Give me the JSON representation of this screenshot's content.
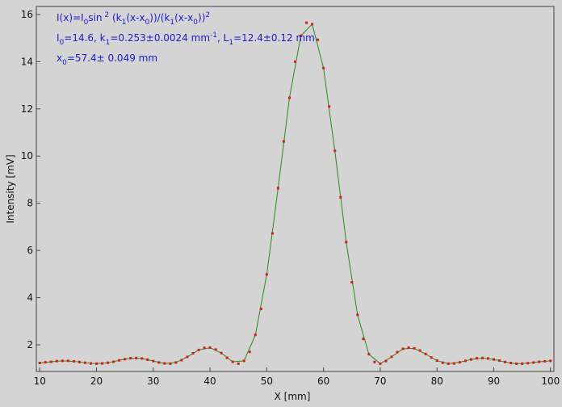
{
  "chart_data": {
    "type": "scatter",
    "xlabel": "X [mm]",
    "ylabel": "Intensity [mV]",
    "xlim": [
      9.4,
      100.6
    ],
    "ylim": [
      0.87,
      16.34
    ],
    "xticks": [
      10,
      20,
      30,
      40,
      50,
      60,
      70,
      80,
      90,
      100
    ],
    "yticks": [
      2,
      4,
      6,
      8,
      10,
      12,
      14,
      16
    ],
    "annotations": [
      [
        "I(x)=I",
        {
          "text": "0",
          "shift": "sub"
        },
        "sin",
        {
          "text": " 2",
          "shift": "sup"
        },
        " (k",
        {
          "text": "1",
          "shift": "sub"
        },
        "(x-x",
        {
          "text": "0",
          "shift": "sub"
        },
        "))/(k",
        {
          "text": "1",
          "shift": "sub"
        },
        "(x-x",
        {
          "text": "0",
          "shift": "sub"
        },
        "))",
        {
          "text": "2",
          "shift": "sup"
        }
      ],
      [
        "I",
        {
          "text": "0",
          "shift": "sub"
        },
        "=14.6,  k",
        {
          "text": "1",
          "shift": "sub"
        },
        "=0.253±0.0024 mm",
        {
          "text": "-1",
          "shift": "sup"
        },
        ",   L",
        {
          "text": "1",
          "shift": "sub"
        },
        "=12.4±0.12 mm"
      ],
      [
        "x",
        {
          "text": "0",
          "shift": "sub"
        },
        "=57.4±  0.049 mm"
      ]
    ],
    "series": [
      {
        "mode": "points",
        "color": "#dd1a10",
        "x": [
          10,
          11,
          12,
          13,
          14,
          15,
          16,
          17,
          18,
          19,
          20,
          21,
          22,
          23,
          24,
          25,
          26,
          27,
          28,
          29,
          30,
          31,
          32,
          33,
          34,
          35,
          36,
          37,
          38,
          39,
          40,
          41,
          42,
          43,
          44,
          45,
          46,
          47,
          48,
          49,
          50,
          51,
          52,
          53,
          54,
          55,
          56,
          57,
          58,
          59,
          60,
          61,
          62,
          63,
          64,
          65,
          66,
          67,
          68,
          69,
          70,
          71,
          72,
          73,
          74,
          75,
          76,
          77,
          78,
          79,
          80,
          81,
          82,
          83,
          84,
          85,
          86,
          87,
          88,
          89,
          90,
          91,
          92,
          93,
          94,
          95,
          96,
          97,
          98,
          99,
          100
        ],
        "values": [
          1.23,
          1.26,
          1.28,
          1.31,
          1.32,
          1.32,
          1.3,
          1.27,
          1.24,
          1.21,
          1.2,
          1.21,
          1.24,
          1.28,
          1.34,
          1.39,
          1.43,
          1.44,
          1.42,
          1.37,
          1.31,
          1.25,
          1.21,
          1.2,
          1.25,
          1.35,
          1.49,
          1.64,
          1.78,
          1.87,
          1.88,
          1.8,
          1.65,
          1.45,
          1.28,
          1.2,
          1.32,
          1.7,
          2.42,
          3.52,
          4.98,
          6.72,
          8.64,
          10.62,
          12.47,
          14.0,
          15.1,
          15.65,
          15.59,
          14.93,
          13.73,
          12.1,
          10.22,
          8.25,
          6.35,
          4.65,
          3.27,
          2.25,
          1.6,
          1.27,
          1.2,
          1.31,
          1.49,
          1.69,
          1.83,
          1.88,
          1.85,
          1.76,
          1.61,
          1.46,
          1.33,
          1.24,
          1.2,
          1.21,
          1.26,
          1.32,
          1.38,
          1.43,
          1.44,
          1.42,
          1.38,
          1.33,
          1.27,
          1.23,
          1.2,
          1.2,
          1.22,
          1.25,
          1.28,
          1.3,
          1.32
        ]
      },
      {
        "mode": "line",
        "color": "#2a8a1a",
        "x": [
          10,
          12,
          14,
          16,
          18,
          20,
          22,
          24,
          26,
          28,
          30,
          32,
          34,
          36,
          38,
          40,
          42,
          44,
          46,
          48,
          50,
          52,
          54,
          56,
          58,
          60,
          62,
          64,
          66,
          68,
          70,
          72,
          74,
          76,
          78,
          80,
          82,
          84,
          86,
          88,
          90,
          92,
          94,
          96,
          98,
          100
        ],
        "values": [
          1.23,
          1.28,
          1.32,
          1.3,
          1.24,
          1.2,
          1.24,
          1.34,
          1.43,
          1.42,
          1.31,
          1.21,
          1.25,
          1.49,
          1.78,
          1.88,
          1.65,
          1.28,
          1.32,
          2.42,
          4.98,
          8.64,
          12.47,
          15.1,
          15.59,
          13.73,
          10.22,
          6.35,
          3.27,
          1.6,
          1.2,
          1.49,
          1.83,
          1.85,
          1.61,
          1.33,
          1.2,
          1.26,
          1.38,
          1.44,
          1.38,
          1.27,
          1.2,
          1.22,
          1.28,
          1.32
        ]
      }
    ]
  }
}
